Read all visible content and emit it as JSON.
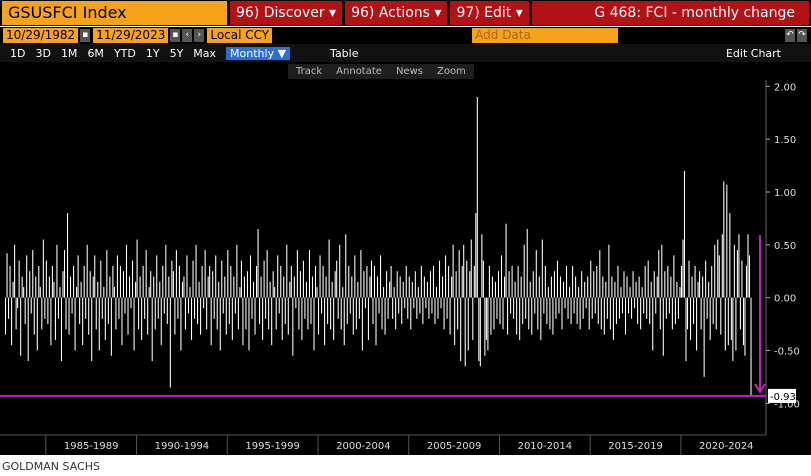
{
  "ui": {
    "ticker": "GSUSFCI Index",
    "menus": [
      "96) Discover ▾",
      "96) Actions ▾",
      "97) Edit ▾"
    ],
    "page_title": "G 468: FCI - monthly change",
    "start_date": "10/29/1982",
    "end_date": "11/29/2023",
    "currency": "Local CCY",
    "add_data": "Add Data",
    "edit_chart": "Edit Chart",
    "ranges": [
      "1D",
      "3D",
      "1M",
      "6M",
      "YTD",
      "1Y",
      "5Y",
      "Max"
    ],
    "frequency": "Monthly ▼",
    "table": "Table",
    "tools": [
      "Track",
      "Annotate",
      "News",
      "Zoom"
    ],
    "source": "GOLDMAN SACHS"
  },
  "chart_data": {
    "type": "bar",
    "color": "#ffffff",
    "reference_line_color": "#c21fbf",
    "x_labels": [
      "1985-1989",
      "1990-1994",
      "1995-1999",
      "2000-2004",
      "2005-2009",
      "2010-2014",
      "2015-2019",
      "2020-2024"
    ],
    "ylim": [
      -1.3,
      2.06
    ],
    "yticks": [
      {
        "value": -1,
        "label": "-1.00"
      },
      {
        "value": -0.5,
        "label": "-0.50"
      },
      {
        "value": 0,
        "label": "0.00"
      },
      {
        "value": 0.5,
        "label": "0.50"
      },
      {
        "value": 1,
        "label": "1.00"
      },
      {
        "value": 1.5,
        "label": "1.50"
      },
      {
        "value": 2,
        "label": "2.00"
      }
    ],
    "values": [
      -0.35,
      0.42,
      -0.2,
      0.3,
      -0.45,
      0.15,
      0.5,
      -0.3,
      -0.1,
      0.35,
      -0.55,
      0.2,
      0.1,
      -0.25,
      0.4,
      -0.6,
      0.25,
      -0.15,
      0.45,
      -0.35,
      0.2,
      -0.5,
      0.3,
      0.1,
      -0.3,
      0.55,
      -0.2,
      0.35,
      -0.25,
      0.2,
      -0.45,
      0.3,
      0.15,
      -0.4,
      0.5,
      -0.2,
      0.1,
      -0.6,
      0.25,
      0.45,
      -0.3,
      0.8,
      -0.35,
      0.2,
      -0.15,
      0.3,
      -0.5,
      0.1,
      0.4,
      -0.25,
      0.15,
      -0.45,
      0.3,
      -0.2,
      0.5,
      -0.35,
      0.25,
      -0.6,
      0.2,
      0.4,
      -0.3,
      0.15,
      -0.5,
      0.35,
      -0.2,
      0.1,
      -0.4,
      0.45,
      -0.25,
      0.2,
      -0.55,
      0.3,
      0.1,
      -0.3,
      0.4,
      -0.2,
      0.3,
      -0.45,
      0.25,
      -0.15,
      0.5,
      -0.35,
      0.2,
      -0.1,
      0.35,
      -0.5,
      0.15,
      0.55,
      -0.3,
      0.2,
      -0.4,
      0.3,
      -0.2,
      0.45,
      -0.35,
      0.1,
      0.25,
      -0.6,
      0.2,
      -0.3,
      0.4,
      -0.2,
      0.15,
      -0.45,
      0.3,
      -0.15,
      0.5,
      -0.25,
      0.2,
      -0.85,
      0.35,
      0.25,
      -0.35,
      0.45,
      -0.2,
      0.3,
      -0.5,
      0.15,
      0.2,
      -0.3,
      0.4,
      -0.15,
      0.1,
      -0.4,
      0.35,
      -0.2,
      0.5,
      -0.25,
      0.15,
      -0.35,
      0.3,
      -0.1,
      0.45,
      -0.3,
      0.2,
      0.3,
      -0.45,
      0.25,
      -0.2,
      0.4,
      -0.3,
      0.15,
      -0.5,
      0.35,
      -0.15,
      0.2,
      -0.35,
      0.45,
      -0.25,
      0.3,
      -0.4,
      0.2,
      -0.15,
      0.5,
      -0.3,
      0.1,
      0.35,
      -0.45,
      0.2,
      -0.3,
      0.25,
      -0.5,
      0.4,
      -0.2,
      0.15,
      -0.35,
      0.3,
      0.65,
      -0.25,
      0.2,
      -0.4,
      0.35,
      -0.2,
      0.45,
      -0.3,
      0.15,
      -0.45,
      0.25,
      0.1,
      -0.3,
      0.4,
      -0.15,
      0.3,
      -0.4,
      0.2,
      -0.25,
      0.5,
      -0.35,
      0.15,
      0.3,
      -0.55,
      0.2,
      -0.1,
      0.45,
      -0.3,
      0.25,
      -0.4,
      0.35,
      -0.2,
      0.15,
      -0.3,
      0.45,
      -0.25,
      0.2,
      -0.5,
      0.3,
      0.1,
      -0.35,
      0.4,
      -0.15,
      0.3,
      -0.45,
      0.2,
      -0.25,
      0.55,
      -0.3,
      0.15,
      -0.4,
      0.25,
      0.35,
      -0.2,
      0.5,
      -0.3,
      0.1,
      -0.45,
      0.6,
      -0.25,
      0.3,
      -0.15,
      0.2,
      -0.35,
      0.4,
      -0.3,
      0.15,
      -0.2,
      0.45,
      -0.5,
      0.25,
      -0.1,
      0.3,
      -0.4,
      0.2,
      0.35,
      -0.25,
      0.3,
      -0.45,
      0.2,
      -0.15,
      0.4,
      -0.3,
      0.1,
      -0.35,
      0.25,
      -0.2,
      0.15,
      0.3,
      -0.2,
      0.1,
      -0.3,
      0.25,
      -0.15,
      0.2,
      -0.25,
      0.15,
      -0.1,
      0.3,
      -0.2,
      0.2,
      -0.3,
      0.15,
      -0.1,
      0.25,
      -0.2,
      0.1,
      -0.15,
      0.3,
      -0.25,
      0.2,
      -0.1,
      0.15,
      -0.2,
      0.25,
      -0.15,
      0.3,
      -0.25,
      0.1,
      -0.2,
      0.35,
      -0.1,
      0.2,
      -0.3,
      0.4,
      -0.2,
      0.3,
      -0.35,
      0.2,
      0.5,
      -0.45,
      0.25,
      -0.3,
      0.45,
      -0.6,
      0.3,
      0.5,
      -0.65,
      0.35,
      -0.5,
      0.25,
      0.55,
      -0.4,
      0.3,
      0.8,
      1.9,
      -0.6,
      -0.65,
      0.6,
      0.35,
      -0.55,
      -0.4,
      -0.5,
      0.3,
      -0.35,
      0.2,
      -0.3,
      0.15,
      -0.2,
      0.25,
      -0.25,
      0.4,
      -0.3,
      0.2,
      0.7,
      -0.35,
      0.25,
      -0.15,
      0.3,
      -0.2,
      0.15,
      -0.35,
      0.3,
      -0.4,
      0.2,
      -0.25,
      0.5,
      -0.2,
      0.65,
      -0.3,
      0.15,
      -0.35,
      0.25,
      -0.15,
      0.45,
      -0.3,
      0.2,
      -0.4,
      0.55,
      -0.15,
      0.3,
      -0.25,
      0.1,
      -0.3,
      0.2,
      -0.35,
      0.25,
      -0.2,
      0.35,
      -0.15,
      0.2,
      -0.3,
      0.15,
      -0.1,
      0.3,
      -0.2,
      0.1,
      -0.25,
      0.3,
      -0.15,
      0.2,
      -0.25,
      0.1,
      -0.3,
      0.25,
      -0.2,
      0.15,
      -0.1,
      0.2,
      -0.3,
      0.35,
      -0.2,
      0.25,
      -0.15,
      0.3,
      -0.25,
      0.45,
      -0.3,
      0.2,
      -0.35,
      0.15,
      -0.2,
      0.5,
      -0.3,
      0.2,
      -0.4,
      0.15,
      -0.25,
      0.3,
      -0.2,
      0.1,
      -0.15,
      0.25,
      -0.35,
      0.2,
      -0.15,
      0.1,
      -0.2,
      0.25,
      -0.1,
      0.15,
      -0.25,
      0.2,
      -0.3,
      0.1,
      -0.15,
      0.3,
      -0.2,
      0.35,
      -0.25,
      0.15,
      -0.5,
      0.25,
      -0.15,
      0.2,
      0.45,
      -0.3,
      0.5,
      -0.55,
      0.25,
      -0.2,
      0.3,
      -0.15,
      0.2,
      -0.3,
      0.4,
      -0.25,
      0.15,
      -0.2,
      0.1,
      0.3,
      0.55,
      1.2,
      -0.6,
      -0.3,
      0.35,
      -0.4,
      0.2,
      -0.25,
      0.3,
      -0.5,
      0.15,
      0.25,
      -0.3,
      0.2,
      -0.75,
      0.35,
      -0.2,
      0.15,
      -0.4,
      0.3,
      -0.25,
      0.5,
      -0.3,
      0.55,
      0.4,
      -0.35,
      0.6,
      1.1,
      -0.5,
      1.07,
      -0.45,
      0.8,
      -0.4,
      -0.6,
      0.5,
      -0.5,
      0.45,
      0.6,
      -0.3,
      0.35,
      -0.45,
      -0.55,
      0.3,
      0.6,
      0.4,
      -0.93
    ]
  }
}
